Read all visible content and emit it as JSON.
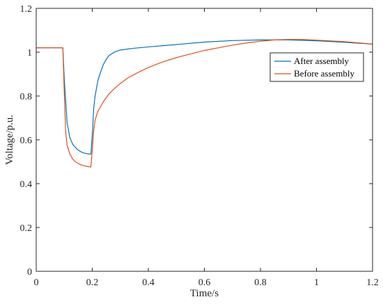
{
  "chart_data": {
    "type": "line",
    "title": "",
    "xlabel": "Time/s",
    "ylabel": "Voltage/p.u.",
    "xlim": [
      0,
      1.2
    ],
    "ylim": [
      0,
      1.2
    ],
    "x_ticks": [
      0,
      0.2,
      0.4,
      0.6,
      0.8,
      1,
      1.2
    ],
    "x_tick_labels": [
      "0",
      "0.2",
      "0.4",
      "0.6",
      "0.8",
      "1",
      "1.2"
    ],
    "y_ticks": [
      0,
      0.2,
      0.4,
      0.6,
      0.8,
      1,
      1.2
    ],
    "y_tick_labels": [
      "0",
      "0.2",
      "0.4",
      "0.6",
      "0.8",
      "1",
      "1.2"
    ],
    "grid": false,
    "legend_position": "top-right",
    "series": [
      {
        "name": "After assembly",
        "color": "#0072BD",
        "points": [
          [
            0,
            1.02
          ],
          [
            0.095,
            1.02
          ],
          [
            0.1,
            0.88
          ],
          [
            0.11,
            0.68
          ],
          [
            0.12,
            0.61
          ],
          [
            0.13,
            0.58
          ],
          [
            0.14,
            0.565
          ],
          [
            0.15,
            0.553
          ],
          [
            0.16,
            0.545
          ],
          [
            0.17,
            0.54
          ],
          [
            0.18,
            0.537
          ],
          [
            0.19,
            0.535
          ],
          [
            0.195,
            0.535
          ],
          [
            0.2,
            0.62
          ],
          [
            0.205,
            0.74
          ],
          [
            0.21,
            0.8
          ],
          [
            0.22,
            0.87
          ],
          [
            0.23,
            0.91
          ],
          [
            0.24,
            0.945
          ],
          [
            0.25,
            0.968
          ],
          [
            0.26,
            0.985
          ],
          [
            0.28,
            1.001
          ],
          [
            0.3,
            1.01
          ],
          [
            0.35,
            1.018
          ],
          [
            0.4,
            1.024
          ],
          [
            0.5,
            1.035
          ],
          [
            0.6,
            1.046
          ],
          [
            0.7,
            1.053
          ],
          [
            0.8,
            1.056
          ],
          [
            0.9,
            1.056
          ],
          [
            1.0,
            1.052
          ],
          [
            1.1,
            1.045
          ],
          [
            1.2,
            1.037
          ]
        ]
      },
      {
        "name": "Before assembly",
        "color": "#D95319",
        "points": [
          [
            0,
            1.02
          ],
          [
            0.095,
            1.02
          ],
          [
            0.1,
            0.82
          ],
          [
            0.105,
            0.64
          ],
          [
            0.11,
            0.575
          ],
          [
            0.12,
            0.535
          ],
          [
            0.13,
            0.513
          ],
          [
            0.14,
            0.5
          ],
          [
            0.15,
            0.492
          ],
          [
            0.16,
            0.486
          ],
          [
            0.17,
            0.482
          ],
          [
            0.18,
            0.479
          ],
          [
            0.19,
            0.477
          ],
          [
            0.195,
            0.476
          ],
          [
            0.2,
            0.55
          ],
          [
            0.205,
            0.64
          ],
          [
            0.21,
            0.69
          ],
          [
            0.22,
            0.73
          ],
          [
            0.24,
            0.775
          ],
          [
            0.26,
            0.81
          ],
          [
            0.28,
            0.835
          ],
          [
            0.3,
            0.857
          ],
          [
            0.33,
            0.885
          ],
          [
            0.36,
            0.905
          ],
          [
            0.4,
            0.93
          ],
          [
            0.45,
            0.955
          ],
          [
            0.5,
            0.975
          ],
          [
            0.55,
            0.992
          ],
          [
            0.6,
            1.008
          ],
          [
            0.65,
            1.02
          ],
          [
            0.7,
            1.032
          ],
          [
            0.75,
            1.042
          ],
          [
            0.8,
            1.05
          ],
          [
            0.85,
            1.056
          ],
          [
            0.9,
            1.058
          ],
          [
            0.95,
            1.058
          ],
          [
            1.0,
            1.055
          ],
          [
            1.1,
            1.048
          ],
          [
            1.2,
            1.037
          ]
        ]
      }
    ]
  }
}
